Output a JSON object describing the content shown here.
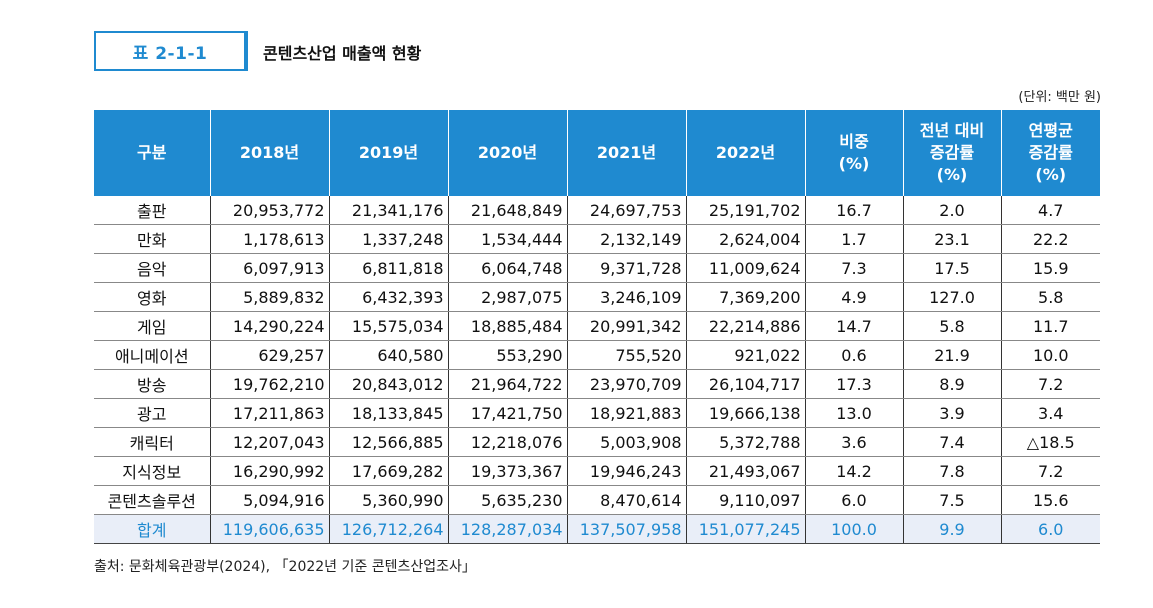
{
  "header": {
    "tag": "표 2-1-1",
    "title": "콘텐츠산업 매출액 현황",
    "unit": "(단위: 백만 원)"
  },
  "columns": [
    "구분",
    "2018년",
    "2019년",
    "2020년",
    "2021년",
    "2022년",
    "비중\n(%)",
    "전년 대비\n증감률\n(%)",
    "연평균\n증감률\n(%)"
  ],
  "rows": [
    [
      "출판",
      "20,953,772",
      "21,341,176",
      "21,648,849",
      "24,697,753",
      "25,191,702",
      "16.7",
      "2.0",
      "4.7"
    ],
    [
      "만화",
      "1,178,613",
      "1,337,248",
      "1,534,444",
      "2,132,149",
      "2,624,004",
      "1.7",
      "23.1",
      "22.2"
    ],
    [
      "음악",
      "6,097,913",
      "6,811,818",
      "6,064,748",
      "9,371,728",
      "11,009,624",
      "7.3",
      "17.5",
      "15.9"
    ],
    [
      "영화",
      "5,889,832",
      "6,432,393",
      "2,987,075",
      "3,246,109",
      "7,369,200",
      "4.9",
      "127.0",
      "5.8"
    ],
    [
      "게임",
      "14,290,224",
      "15,575,034",
      "18,885,484",
      "20,991,342",
      "22,214,886",
      "14.7",
      "5.8",
      "11.7"
    ],
    [
      "애니메이션",
      "629,257",
      "640,580",
      "553,290",
      "755,520",
      "921,022",
      "0.6",
      "21.9",
      "10.0"
    ],
    [
      "방송",
      "19,762,210",
      "20,843,012",
      "21,964,722",
      "23,970,709",
      "26,104,717",
      "17.3",
      "8.9",
      "7.2"
    ],
    [
      "광고",
      "17,211,863",
      "18,133,845",
      "17,421,750",
      "18,921,883",
      "19,666,138",
      "13.0",
      "3.9",
      "3.4"
    ],
    [
      "캐릭터",
      "12,207,043",
      "12,566,885",
      "12,218,076",
      "5,003,908",
      "5,372,788",
      "3.6",
      "7.4",
      "△18.5"
    ],
    [
      "지식정보",
      "16,290,992",
      "17,669,282",
      "19,373,367",
      "19,946,243",
      "21,493,067",
      "14.2",
      "7.8",
      "7.2"
    ],
    [
      "콘텐츠솔루션",
      "5,094,916",
      "5,360,990",
      "5,635,230",
      "8,470,614",
      "9,110,097",
      "6.0",
      "7.5",
      "15.6"
    ]
  ],
  "total": [
    "합계",
    "119,606,635",
    "126,712,264",
    "128,287,034",
    "137,507,958",
    "151,077,245",
    "100.0",
    "9.9",
    "6.0"
  ],
  "source": "출처: 문화체육관광부(2024), 「2022년 기준 콘텐츠산업조사」",
  "colors": {
    "accent": "#1f8ad0",
    "total_bg": "#e9eef8"
  }
}
